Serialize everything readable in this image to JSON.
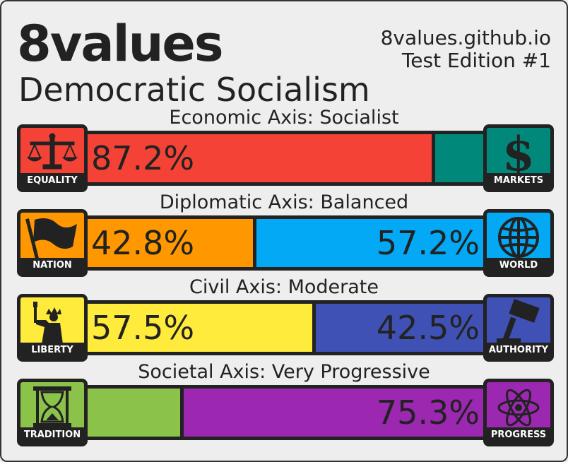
{
  "header": {
    "brand": "8values",
    "ideology": "Democratic Socialism",
    "site": "8values.github.io",
    "edition": "Test Edition #1"
  },
  "axes": [
    {
      "title": "Economic Axis: Socialist",
      "left": {
        "label": "EQUALITY",
        "icon": "scales-icon",
        "color": "#f44336",
        "value": 87.2,
        "text": "87.2%"
      },
      "right": {
        "label": "MARKETS",
        "icon": "dollar-icon",
        "color": "#00897b",
        "value": 12.8,
        "text": ""
      }
    },
    {
      "title": "Diplomatic Axis: Balanced",
      "left": {
        "label": "NATION",
        "icon": "flag-icon",
        "color": "#ff9800",
        "value": 42.8,
        "text": "42.8%"
      },
      "right": {
        "label": "WORLD",
        "icon": "globe-icon",
        "color": "#03a9f4",
        "value": 57.2,
        "text": "57.2%"
      }
    },
    {
      "title": "Civil Axis: Moderate",
      "left": {
        "label": "LIBERTY",
        "icon": "statue-of-liberty-icon",
        "color": "#ffeb3b",
        "value": 57.5,
        "text": "57.5%"
      },
      "right": {
        "label": "AUTHORITY",
        "icon": "gavel-icon",
        "color": "#3f51b5",
        "value": 42.5,
        "text": "42.5%"
      }
    },
    {
      "title": "Societal Axis: Very Progressive",
      "left": {
        "label": "TRADITION",
        "icon": "hourglass-icon",
        "color": "#8bc34a",
        "value": 24.7,
        "text": ""
      },
      "right": {
        "label": "PROGRESS",
        "icon": "atom-icon",
        "color": "#9c27b0",
        "value": 75.3,
        "text": "75.3%"
      }
    }
  ]
}
